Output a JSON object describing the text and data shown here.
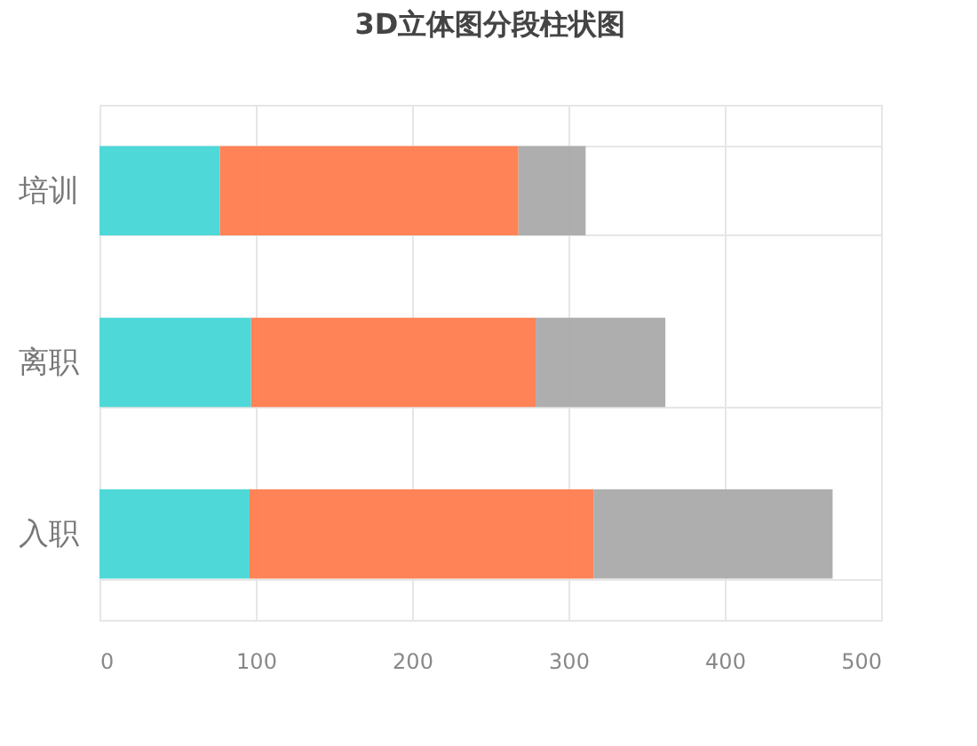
{
  "chart_data": {
    "type": "bar",
    "title": "3D立体图分段柱状图",
    "orientation": "horizontal",
    "stacked": true,
    "categories": [
      "培训",
      "离职",
      "入职"
    ],
    "series": [
      {
        "color": "#46d6d6",
        "values": [
          77,
          97,
          96
        ]
      },
      {
        "color": "#ff7c4d",
        "values": [
          191,
          182,
          220
        ]
      },
      {
        "color": "#aaaaaa",
        "values": [
          43,
          83,
          153
        ]
      }
    ],
    "xlim": [
      0,
      500
    ],
    "xticks": [
      0,
      100,
      200,
      300,
      400,
      500
    ],
    "grid": true,
    "legend": false
  }
}
